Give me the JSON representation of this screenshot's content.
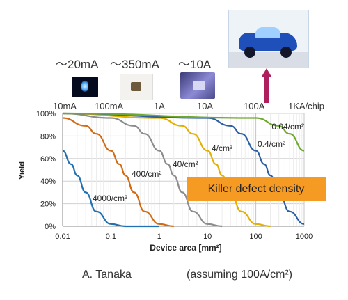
{
  "current_labels": {
    "top": [
      "～20mA",
      "～350mA",
      "～10A"
    ],
    "scale": [
      "10mA",
      "100mA",
      "1A",
      "10A",
      "100A",
      "1KA/chip"
    ]
  },
  "legend_box": "Killer defect density",
  "author": "A. Tanaka",
  "assumption": "(assuming 100A/cm²)",
  "colors": {
    "highlight": "#f59a23",
    "arrow": "#b01f5d"
  },
  "icons": [
    "led-20ma-photo",
    "led-350ma-photo",
    "led-10a-photo",
    "electric-car-photo",
    "up-arrow-icon"
  ],
  "chart_data": {
    "type": "line",
    "xlabel": "Device area [mm²]",
    "ylabel": "Yield",
    "xscale": "log",
    "xlim": [
      0.01,
      1000
    ],
    "ylim": [
      0,
      100
    ],
    "xticks": [
      "0.01",
      "0.1",
      "1",
      "10",
      "100",
      "1000"
    ],
    "yticks": [
      "0%",
      "20%",
      "40%",
      "60%",
      "80%",
      "100%"
    ],
    "grid": true,
    "series": [
      {
        "name": "4000/cm²",
        "color": "#1f6fb2",
        "x": [
          0.01,
          0.015,
          0.02,
          0.03,
          0.05,
          0.1,
          0.2,
          0.5,
          1
        ],
        "y": [
          67,
          55,
          45,
          30,
          13,
          2,
          0,
          0,
          0
        ]
      },
      {
        "name": "400/cm²",
        "color": "#d36b14",
        "x": [
          0.01,
          0.03,
          0.05,
          0.1,
          0.15,
          0.2,
          0.3,
          0.5,
          1,
          2
        ],
        "y": [
          96,
          89,
          82,
          67,
          55,
          45,
          30,
          13,
          2,
          0
        ]
      },
      {
        "name": "40/cm²",
        "color": "#8c8c8c",
        "x": [
          0.01,
          0.1,
          0.3,
          0.5,
          1,
          1.5,
          2,
          3,
          5,
          10,
          20
        ],
        "y": [
          100,
          96,
          89,
          82,
          67,
          55,
          45,
          30,
          13,
          2,
          0
        ]
      },
      {
        "name": "4/cm²",
        "color": "#e3b000",
        "x": [
          0.01,
          1,
          3,
          5,
          10,
          15,
          20,
          30,
          50,
          100,
          200
        ],
        "y": [
          100,
          96,
          89,
          82,
          67,
          55,
          45,
          30,
          13,
          2,
          0
        ]
      },
      {
        "name": "0.4/cm²",
        "color": "#2e5fa3",
        "x": [
          0.01,
          10,
          30,
          50,
          100,
          150,
          200,
          300,
          500,
          1000
        ],
        "y": [
          100,
          96,
          89,
          82,
          67,
          55,
          45,
          30,
          13,
          2
        ]
      },
      {
        "name": "0.04/cm²",
        "color": "#6ea831",
        "x": [
          0.01,
          100,
          300,
          500,
          1000
        ],
        "y": [
          100,
          96,
          89,
          82,
          67
        ]
      }
    ]
  }
}
